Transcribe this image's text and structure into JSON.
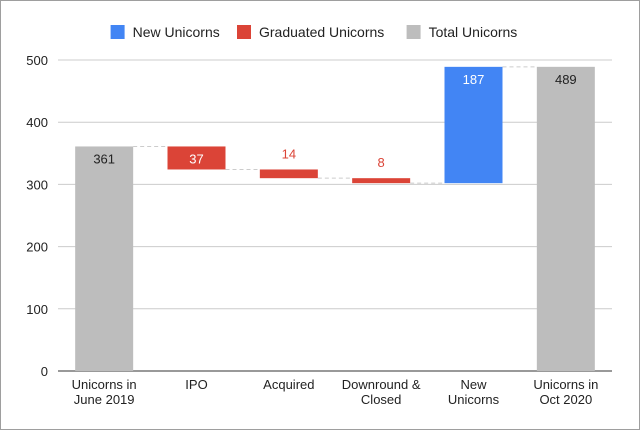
{
  "chart_data": {
    "type": "waterfall",
    "title": "",
    "xlabel": "",
    "ylabel": "",
    "ylim": [
      0,
      500
    ],
    "yticks": [
      0,
      100,
      200,
      300,
      400,
      500
    ],
    "grid": true,
    "legend_position": "top",
    "legend": [
      {
        "key": "new",
        "name": "New Unicorns",
        "color": "#4285f4"
      },
      {
        "key": "graduated",
        "name": "Graduated Unicorns",
        "color": "#db4437"
      },
      {
        "key": "total",
        "name": "Total Unicorns",
        "color": "#bdbdbd"
      }
    ],
    "categories": [
      [
        "Unicorns in",
        "June 2019"
      ],
      [
        "IPO"
      ],
      [
        "Acquired"
      ],
      [
        "Downround &",
        "Closed"
      ],
      [
        "New",
        "Unicorns"
      ],
      [
        "Unicorns in",
        "Oct 2020"
      ]
    ],
    "bars": [
      {
        "kind": "total",
        "start": 0,
        "end": 361,
        "label": "361"
      },
      {
        "kind": "graduated",
        "start": 361,
        "end": 324,
        "label": "37"
      },
      {
        "kind": "graduated",
        "start": 324,
        "end": 310,
        "label": "14"
      },
      {
        "kind": "graduated",
        "start": 310,
        "end": 302,
        "label": "8"
      },
      {
        "kind": "new",
        "start": 302,
        "end": 489,
        "label": "187"
      },
      {
        "kind": "total",
        "start": 0,
        "end": 489,
        "label": "489"
      }
    ]
  }
}
